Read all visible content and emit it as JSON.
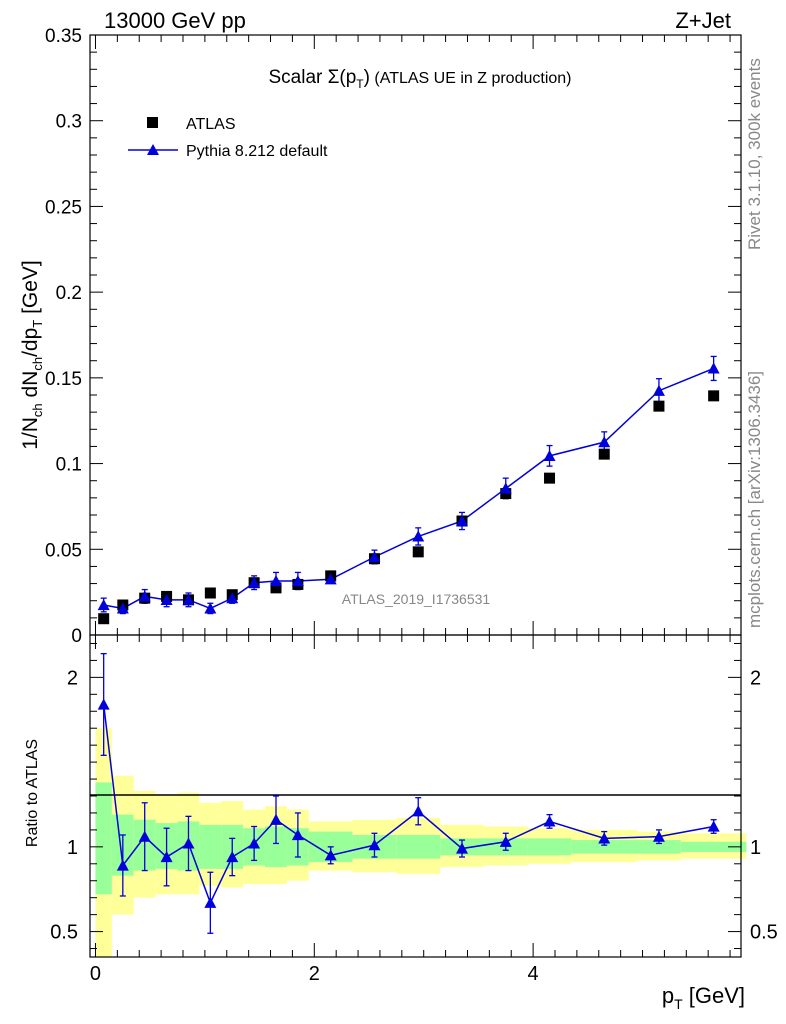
{
  "header": {
    "left": "13000 GeV pp",
    "right": "Z+Jet"
  },
  "side_labels": {
    "rivet": "Rivet 3.1.10,  300k events",
    "mcplots": "mcplots.cern.ch [arXiv:1306.3436]"
  },
  "watermark": "ATLAS_2019_I1736531",
  "colors": {
    "data": "#000000",
    "mc": "#0000dd",
    "band_inner": "#99ff99",
    "band_outer": "#ffff99"
  },
  "chart_data": [
    {
      "type": "scatter",
      "panel": "main",
      "title_parts": {
        "prefix": "Scalar ",
        "sigma": "Σ(p",
        "sub": "T",
        "suffix": ")",
        "rest": " (ATLAS UE in Z production)"
      },
      "ylabel_parts": [
        "1/N",
        "ch",
        " dN",
        "ch",
        "/dp",
        "T",
        " [GeV]"
      ],
      "xlim": [
        -0.05,
        5.9
      ],
      "ylim": [
        0,
        0.35
      ],
      "yticks": [
        0,
        0.05,
        0.1,
        0.15,
        0.2,
        0.25,
        0.3,
        0.35
      ],
      "ytick_labels": [
        "0",
        "0.05",
        "0.1",
        "0.15",
        "0.2",
        "0.25",
        "0.3",
        "0.35"
      ],
      "legend": {
        "position": "top-left",
        "entries": [
          "ATLAS",
          "Pythia 8.212 default"
        ]
      },
      "series": [
        {
          "name": "ATLAS",
          "marker": "square",
          "x": [
            0.075,
            0.25,
            0.45,
            0.65,
            0.85,
            1.05,
            1.25,
            1.45,
            1.65,
            1.85,
            2.15,
            2.55,
            2.95,
            3.35,
            3.75,
            4.15,
            4.65,
            5.15,
            5.65
          ],
          "y": [
            0.0095,
            0.0175,
            0.0215,
            0.0225,
            0.0205,
            0.0245,
            0.0235,
            0.0305,
            0.0275,
            0.0295,
            0.0345,
            0.0445,
            0.0485,
            0.0665,
            0.0825,
            0.0915,
            0.1055,
            0.1335,
            0.1395
          ]
        },
        {
          "name": "Pythia 8.212 default",
          "marker": "triangle",
          "x": [
            0.075,
            0.25,
            0.45,
            0.65,
            0.85,
            1.05,
            1.25,
            1.45,
            1.65,
            1.85,
            2.15,
            2.55,
            2.95,
            3.35,
            3.75,
            4.15,
            4.65,
            5.15,
            5.65
          ],
          "y": [
            0.0175,
            0.0155,
            0.0225,
            0.0205,
            0.0205,
            0.0155,
            0.0215,
            0.0305,
            0.0315,
            0.0315,
            0.0325,
            0.0455,
            0.0575,
            0.0665,
            0.0855,
            0.1045,
            0.1125,
            0.1425,
            0.1555
          ],
          "yerr": [
            0.004,
            0.003,
            0.004,
            0.004,
            0.004,
            0.003,
            0.003,
            0.004,
            0.005,
            0.005,
            0.002,
            0.004,
            0.005,
            0.005,
            0.006,
            0.006,
            0.006,
            0.007,
            0.007
          ]
        }
      ]
    },
    {
      "type": "scatter",
      "panel": "ratio",
      "ylabel": "Ratio to ATLAS",
      "xlabel_parts": {
        "main": "p",
        "sub": "T",
        "rest": " [GeV]"
      },
      "xlim": [
        -0.05,
        5.9
      ],
      "ylim": [
        0.35,
        2.25
      ],
      "xticks": [
        0,
        2,
        4
      ],
      "xtick_labels": [
        "0",
        "2",
        "4"
      ],
      "yticks": [
        0.5,
        1,
        2
      ],
      "ytick_labels": [
        "0.5",
        "1",
        "2"
      ],
      "bin_edges": [
        0,
        0.15,
        0.35,
        0.55,
        0.75,
        0.95,
        1.15,
        1.35,
        1.55,
        1.75,
        1.95,
        2.35,
        2.75,
        3.15,
        3.55,
        3.95,
        4.35,
        4.95,
        5.35,
        5.95
      ],
      "band_inner": {
        "lo": [
          0.72,
          0.83,
          0.86,
          0.87,
          0.86,
          0.87,
          0.87,
          0.89,
          0.88,
          0.89,
          0.91,
          0.93,
          0.93,
          0.95,
          0.95,
          0.95,
          0.96,
          0.96,
          0.97
        ],
        "hi": [
          1.38,
          1.19,
          1.16,
          1.14,
          1.15,
          1.13,
          1.13,
          1.11,
          1.12,
          1.11,
          1.09,
          1.07,
          1.07,
          1.05,
          1.05,
          1.05,
          1.04,
          1.04,
          1.03
        ]
      },
      "band_outer": {
        "lo": [
          0.35,
          0.6,
          0.7,
          0.72,
          0.72,
          0.77,
          0.76,
          0.78,
          0.78,
          0.8,
          0.86,
          0.85,
          0.84,
          0.88,
          0.89,
          0.9,
          0.91,
          0.92,
          0.93
        ],
        "hi": [
          1.7,
          1.42,
          1.33,
          1.31,
          1.32,
          1.26,
          1.27,
          1.22,
          1.24,
          1.22,
          1.15,
          1.16,
          1.17,
          1.13,
          1.12,
          1.11,
          1.1,
          1.09,
          1.08
        ]
      },
      "series": [
        {
          "name": "Pythia 8.212 default",
          "marker": "triangle",
          "x": [
            0.075,
            0.25,
            0.45,
            0.65,
            0.85,
            1.05,
            1.25,
            1.45,
            1.65,
            1.85,
            2.15,
            2.55,
            2.95,
            3.35,
            3.75,
            4.15,
            4.65,
            5.15,
            5.65
          ],
          "y": [
            1.84,
            0.89,
            1.06,
            0.94,
            1.02,
            0.67,
            0.94,
            1.02,
            1.16,
            1.07,
            0.95,
            1.01,
            1.21,
            0.99,
            1.03,
            1.15,
            1.05,
            1.06,
            1.12
          ],
          "yerr": [
            0.3,
            0.18,
            0.2,
            0.17,
            0.16,
            0.18,
            0.11,
            0.1,
            0.14,
            0.13,
            0.05,
            0.07,
            0.08,
            0.05,
            0.05,
            0.04,
            0.04,
            0.04,
            0.04
          ]
        }
      ]
    }
  ]
}
